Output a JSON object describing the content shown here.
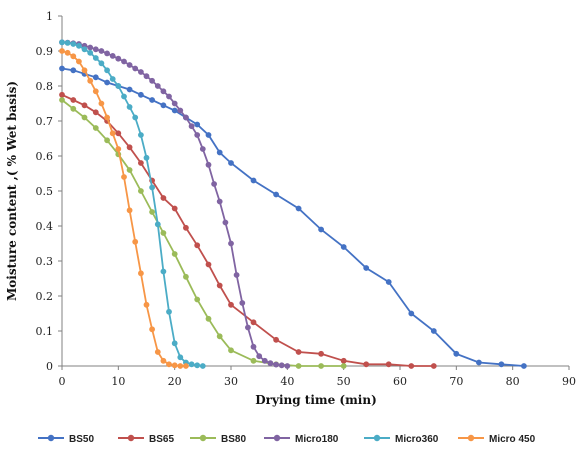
{
  "chart_data": {
    "type": "line",
    "title": "",
    "xlabel": "Drying time (min)",
    "ylabel": "Moisture content ,( % Wet basis)",
    "xlim": [
      0,
      90
    ],
    "ylim": [
      0,
      1
    ],
    "x_ticks": [
      "0",
      "10",
      "20",
      "30",
      "40",
      "50",
      "60",
      "70",
      "80",
      "90"
    ],
    "y_ticks": [
      "0",
      "0.1",
      "0.2",
      "0.3",
      "0.4",
      "0.5",
      "0.6",
      "0.7",
      "0.8",
      "0.9",
      "1"
    ],
    "grid": false,
    "legend_position": "bottom",
    "series": [
      {
        "name": "BS50",
        "color": "#4472C4",
        "x": [
          0,
          2,
          4,
          6,
          8,
          10,
          12,
          14,
          16,
          18,
          20,
          22,
          24,
          26,
          28,
          30,
          34,
          38,
          42,
          46,
          50,
          54,
          58,
          62,
          66,
          70,
          74,
          78,
          82
        ],
        "y": [
          0.85,
          0.845,
          0.835,
          0.825,
          0.81,
          0.8,
          0.79,
          0.775,
          0.76,
          0.745,
          0.73,
          0.71,
          0.69,
          0.66,
          0.61,
          0.58,
          0.53,
          0.49,
          0.45,
          0.39,
          0.34,
          0.28,
          0.24,
          0.15,
          0.1,
          0.035,
          0.01,
          0.005,
          0.0
        ]
      },
      {
        "name": "BS65",
        "color": "#C0504D",
        "x": [
          0,
          2,
          4,
          6,
          8,
          10,
          12,
          14,
          16,
          18,
          20,
          22,
          24,
          26,
          28,
          30,
          34,
          38,
          42,
          46,
          50,
          54,
          58,
          62,
          66
        ],
        "y": [
          0.775,
          0.76,
          0.745,
          0.725,
          0.7,
          0.665,
          0.625,
          0.58,
          0.53,
          0.48,
          0.45,
          0.395,
          0.345,
          0.29,
          0.23,
          0.175,
          0.125,
          0.075,
          0.04,
          0.035,
          0.015,
          0.005,
          0.005,
          0.0,
          0.0
        ]
      },
      {
        "name": "BS80",
        "color": "#9BBB59",
        "x": [
          0,
          2,
          4,
          6,
          8,
          10,
          12,
          14,
          16,
          18,
          20,
          22,
          24,
          26,
          28,
          30,
          34,
          38,
          42,
          46,
          50
        ],
        "y": [
          0.76,
          0.735,
          0.71,
          0.68,
          0.645,
          0.605,
          0.56,
          0.5,
          0.44,
          0.38,
          0.32,
          0.255,
          0.19,
          0.135,
          0.085,
          0.045,
          0.015,
          0.005,
          0.0,
          0.0,
          0.0
        ]
      },
      {
        "name": "Micro180",
        "color": "#8064A2",
        "x": [
          0,
          1,
          2,
          3,
          4,
          5,
          6,
          7,
          8,
          9,
          10,
          11,
          12,
          13,
          14,
          15,
          16,
          17,
          18,
          19,
          20,
          21,
          22,
          23,
          24,
          25,
          26,
          27,
          28,
          29,
          30,
          31,
          32,
          33,
          34,
          35,
          36,
          37,
          38,
          39,
          40
        ],
        "y": [
          0.925,
          0.924,
          0.922,
          0.92,
          0.915,
          0.91,
          0.905,
          0.9,
          0.893,
          0.886,
          0.878,
          0.87,
          0.86,
          0.85,
          0.84,
          0.828,
          0.815,
          0.8,
          0.785,
          0.77,
          0.75,
          0.73,
          0.71,
          0.685,
          0.66,
          0.62,
          0.575,
          0.52,
          0.47,
          0.41,
          0.35,
          0.26,
          0.18,
          0.11,
          0.055,
          0.028,
          0.015,
          0.008,
          0.004,
          0.002,
          0.0
        ]
      },
      {
        "name": "Micro360",
        "color": "#4BACC6",
        "x": [
          0,
          1,
          2,
          3,
          4,
          5,
          6,
          7,
          8,
          9,
          10,
          11,
          12,
          13,
          14,
          15,
          16,
          17,
          18,
          19,
          20,
          21,
          22,
          23,
          24,
          25
        ],
        "y": [
          0.925,
          0.923,
          0.92,
          0.915,
          0.905,
          0.895,
          0.88,
          0.865,
          0.845,
          0.82,
          0.8,
          0.77,
          0.74,
          0.71,
          0.66,
          0.595,
          0.51,
          0.405,
          0.27,
          0.155,
          0.065,
          0.025,
          0.01,
          0.005,
          0.002,
          0.0
        ]
      },
      {
        "name": "Micro 450",
        "color": "#F79646",
        "x": [
          0,
          1,
          2,
          3,
          4,
          5,
          6,
          7,
          8,
          9,
          10,
          11,
          12,
          13,
          14,
          15,
          16,
          17,
          18,
          19,
          20,
          21,
          22
        ],
        "y": [
          0.9,
          0.895,
          0.885,
          0.87,
          0.845,
          0.815,
          0.785,
          0.75,
          0.71,
          0.665,
          0.62,
          0.54,
          0.445,
          0.355,
          0.265,
          0.175,
          0.105,
          0.04,
          0.015,
          0.005,
          0.002,
          0.0,
          0.0
        ]
      }
    ]
  }
}
